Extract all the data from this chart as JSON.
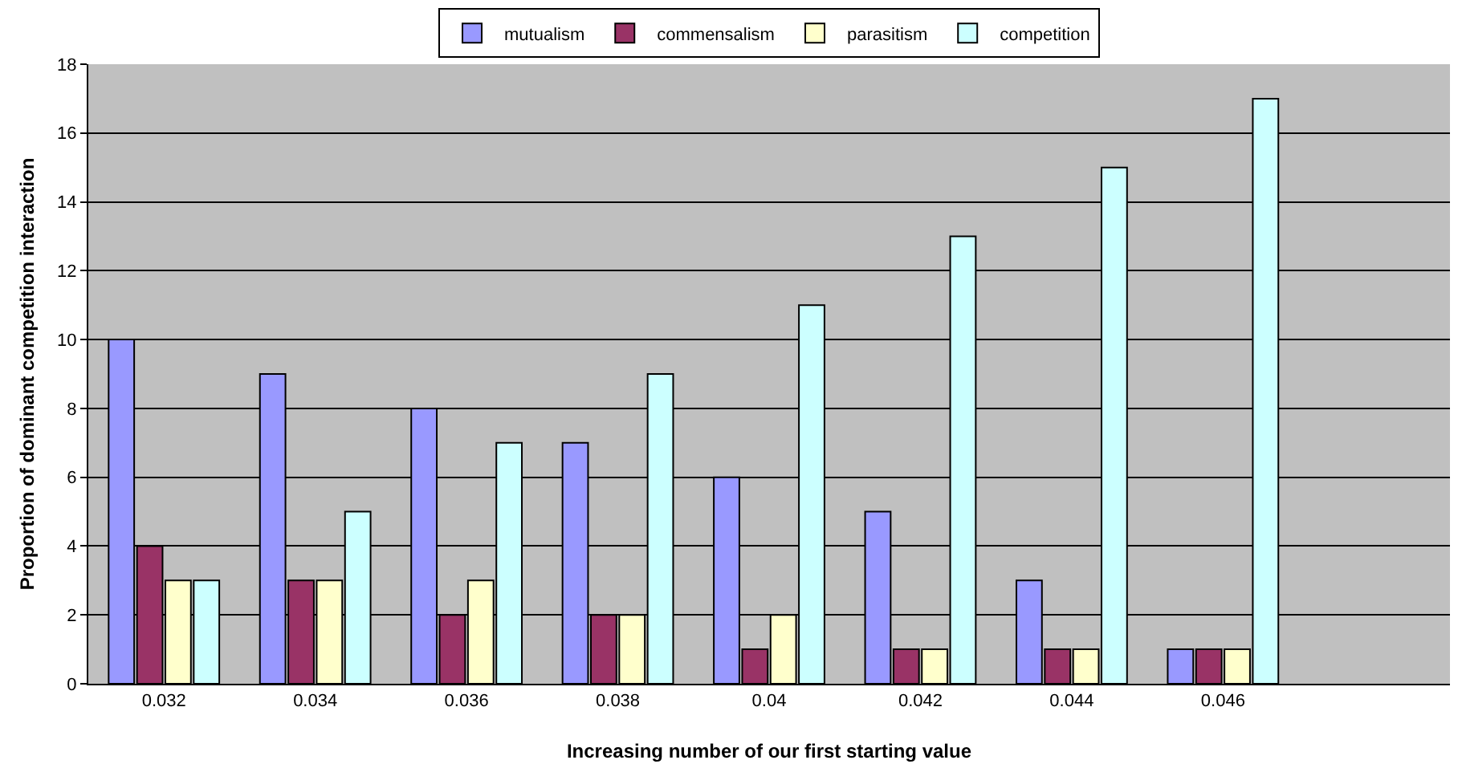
{
  "chart_data": {
    "type": "bar",
    "xlabel": "Increasing number of our first starting value",
    "ylabel": "Proportion of dominant competition interaction",
    "categories": [
      "0.032",
      "0.034",
      "0.036",
      "0.038",
      "0.04",
      "0.042",
      "0.044",
      "0.046",
      null
    ],
    "series": [
      {
        "name": "mutualism",
        "color": "#9999ff",
        "values": [
          10,
          9,
          8,
          7,
          6,
          5,
          3,
          1,
          null
        ]
      },
      {
        "name": "commensalism",
        "color": "#993366",
        "values": [
          4,
          3,
          2,
          2,
          1,
          1,
          1,
          1,
          null
        ]
      },
      {
        "name": "parasitism",
        "color": "#ffffcc",
        "values": [
          3,
          3,
          3,
          2,
          2,
          1,
          1,
          1,
          null
        ]
      },
      {
        "name": "competition",
        "color": "#ccffff",
        "values": [
          3,
          5,
          7,
          9,
          11,
          13,
          15,
          17,
          null
        ]
      }
    ],
    "ylim": [
      0,
      18
    ],
    "yticks": [
      0,
      2,
      4,
      6,
      8,
      10,
      12,
      14,
      16,
      18
    ],
    "grid": "y",
    "legend": "top"
  }
}
